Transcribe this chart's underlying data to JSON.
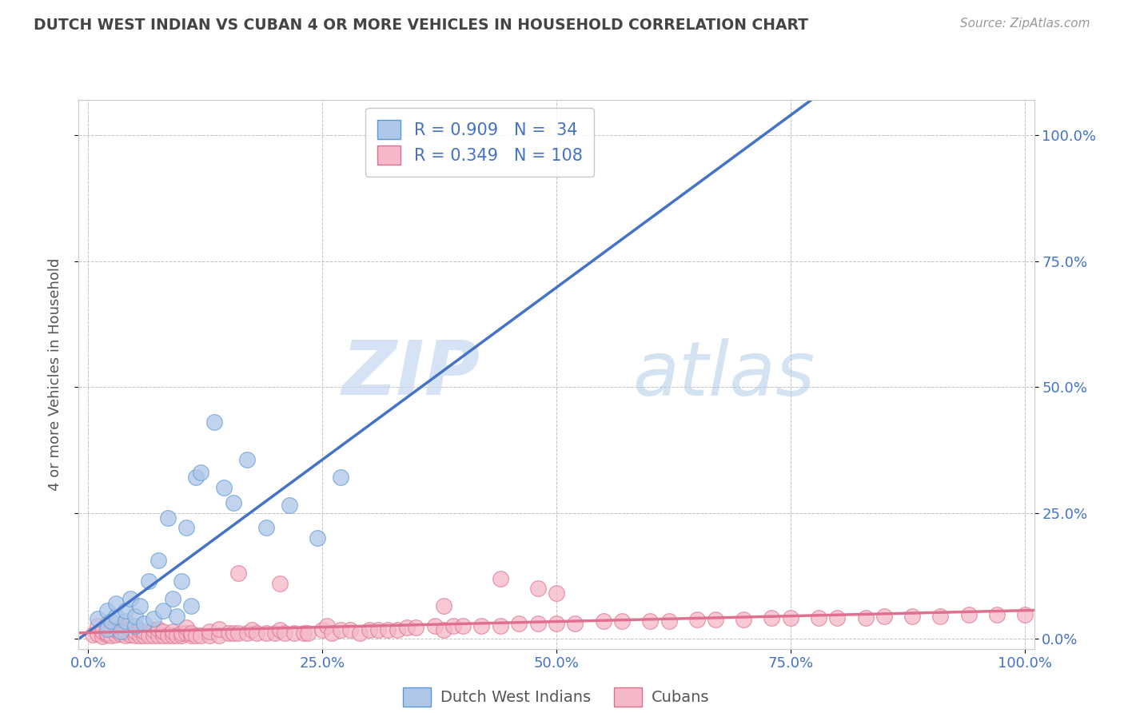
{
  "title": "DUTCH WEST INDIAN VS CUBAN 4 OR MORE VEHICLES IN HOUSEHOLD CORRELATION CHART",
  "source": "Source: ZipAtlas.com",
  "ylabel": "4 or more Vehicles in Household",
  "group1_name": "Dutch West Indians",
  "group1_color": "#aec6e8",
  "group1_edge_color": "#5b9bd5",
  "group1_line_color": "#4472c4",
  "group1_R": 0.909,
  "group1_N": 34,
  "group2_name": "Cubans",
  "group2_color": "#f4b8c8",
  "group2_edge_color": "#e07090",
  "group2_line_color": "#e07090",
  "group2_R": 0.349,
  "group2_N": 108,
  "watermark_zip": "ZIP",
  "watermark_atlas": "atlas",
  "background_color": "#ffffff",
  "grid_color": "#bbbbbb",
  "title_color": "#444444",
  "axis_label_color": "#555555",
  "tick_label_color": "#4472c4",
  "legend_color": "#4472c4",
  "xlim": [
    -0.01,
    1.01
  ],
  "ylim": [
    -0.02,
    1.07
  ],
  "dutch_west_indian_x": [
    0.01,
    0.02,
    0.02,
    0.025,
    0.03,
    0.03,
    0.035,
    0.04,
    0.04,
    0.045,
    0.05,
    0.05,
    0.055,
    0.06,
    0.065,
    0.07,
    0.075,
    0.08,
    0.085,
    0.09,
    0.095,
    0.1,
    0.105,
    0.11,
    0.115,
    0.12,
    0.135,
    0.145,
    0.155,
    0.17,
    0.19,
    0.215,
    0.245,
    0.27
  ],
  "dutch_west_indian_y": [
    0.04,
    0.02,
    0.055,
    0.035,
    0.045,
    0.07,
    0.015,
    0.035,
    0.055,
    0.08,
    0.025,
    0.045,
    0.065,
    0.03,
    0.115,
    0.04,
    0.155,
    0.055,
    0.24,
    0.08,
    0.045,
    0.115,
    0.22,
    0.065,
    0.32,
    0.33,
    0.43,
    0.3,
    0.27,
    0.355,
    0.22,
    0.265,
    0.2,
    0.32
  ],
  "cuban_x": [
    0.005,
    0.01,
    0.01,
    0.015,
    0.015,
    0.02,
    0.02,
    0.02,
    0.025,
    0.025,
    0.03,
    0.03,
    0.03,
    0.035,
    0.035,
    0.04,
    0.04,
    0.04,
    0.045,
    0.045,
    0.05,
    0.05,
    0.055,
    0.055,
    0.06,
    0.06,
    0.065,
    0.07,
    0.07,
    0.075,
    0.075,
    0.08,
    0.08,
    0.085,
    0.09,
    0.09,
    0.095,
    0.1,
    0.1,
    0.105,
    0.105,
    0.11,
    0.11,
    0.115,
    0.12,
    0.13,
    0.13,
    0.14,
    0.14,
    0.15,
    0.155,
    0.16,
    0.17,
    0.175,
    0.18,
    0.19,
    0.2,
    0.205,
    0.21,
    0.22,
    0.23,
    0.235,
    0.25,
    0.255,
    0.26,
    0.27,
    0.28,
    0.29,
    0.3,
    0.31,
    0.32,
    0.33,
    0.34,
    0.35,
    0.37,
    0.38,
    0.39,
    0.4,
    0.42,
    0.44,
    0.46,
    0.48,
    0.5,
    0.52,
    0.55,
    0.57,
    0.6,
    0.62,
    0.65,
    0.67,
    0.7,
    0.73,
    0.75,
    0.78,
    0.8,
    0.83,
    0.85,
    0.88,
    0.91,
    0.94,
    0.97,
    1.0,
    0.44,
    0.48,
    0.205,
    0.5,
    0.16,
    0.38
  ],
  "cuban_y": [
    0.008,
    0.01,
    0.025,
    0.005,
    0.015,
    0.008,
    0.012,
    0.03,
    0.006,
    0.02,
    0.008,
    0.018,
    0.028,
    0.01,
    0.022,
    0.006,
    0.015,
    0.025,
    0.008,
    0.02,
    0.006,
    0.015,
    0.006,
    0.018,
    0.006,
    0.015,
    0.006,
    0.006,
    0.018,
    0.006,
    0.02,
    0.006,
    0.015,
    0.006,
    0.006,
    0.015,
    0.006,
    0.006,
    0.012,
    0.012,
    0.022,
    0.006,
    0.012,
    0.006,
    0.006,
    0.006,
    0.015,
    0.006,
    0.02,
    0.012,
    0.012,
    0.012,
    0.012,
    0.018,
    0.012,
    0.012,
    0.012,
    0.018,
    0.012,
    0.012,
    0.012,
    0.012,
    0.018,
    0.025,
    0.012,
    0.018,
    0.018,
    0.012,
    0.018,
    0.018,
    0.018,
    0.018,
    0.022,
    0.022,
    0.025,
    0.018,
    0.025,
    0.025,
    0.025,
    0.025,
    0.03,
    0.03,
    0.03,
    0.03,
    0.035,
    0.035,
    0.035,
    0.035,
    0.038,
    0.038,
    0.038,
    0.042,
    0.042,
    0.042,
    0.042,
    0.042,
    0.045,
    0.045,
    0.045,
    0.048,
    0.048,
    0.048,
    0.12,
    0.1,
    0.11,
    0.09,
    0.13,
    0.065
  ]
}
